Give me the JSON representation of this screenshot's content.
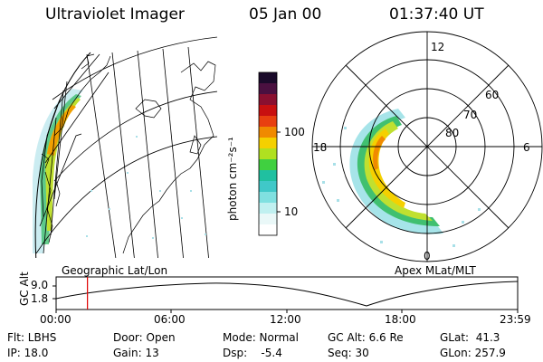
{
  "header": {
    "instrument": "Ultraviolet Imager",
    "date": "05 Jan 00",
    "time": "01:37:40 UT"
  },
  "colorbar": {
    "label": "photon cm⁻²s⁻¹",
    "ticks": [
      "100",
      "10"
    ],
    "colors_top_to_bottom": [
      "#1a0a2a",
      "#4a1040",
      "#8a1030",
      "#c81010",
      "#e84010",
      "#f08a00",
      "#f5d000",
      "#b0e020",
      "#40d040",
      "#20c0a0",
      "#80e0e0",
      "#ffffff"
    ]
  },
  "map_panel": {
    "label": "Geographic Lat/Lon"
  },
  "polar_panel": {
    "label": "Apex MLat/MLT",
    "mlt_labels": {
      "top": "12",
      "left": "18",
      "right": "6",
      "bottom": "0"
    },
    "lat_labels": [
      "60",
      "70",
      "80"
    ]
  },
  "altitude_plot": {
    "ylabel": "GC Alt",
    "yticks": [
      "9.0",
      "1.8"
    ],
    "xticks": [
      "00:00",
      "06:00",
      "12:00",
      "18:00",
      "23:59"
    ],
    "current_time_hours": 1.63
  },
  "footer": {
    "flt": "Flt: LBHS",
    "ip": "IP: 18.0",
    "door": "Door: Open",
    "gain": "Gain: 13",
    "mode": "Mode: Normal",
    "dsp": "Dsp:    -5.4",
    "gcalt": "GC Alt: 6.6 Re",
    "seq": "Seq: 30",
    "glat": "GLat:  41.3",
    "glon": "GLon: 257.9"
  }
}
